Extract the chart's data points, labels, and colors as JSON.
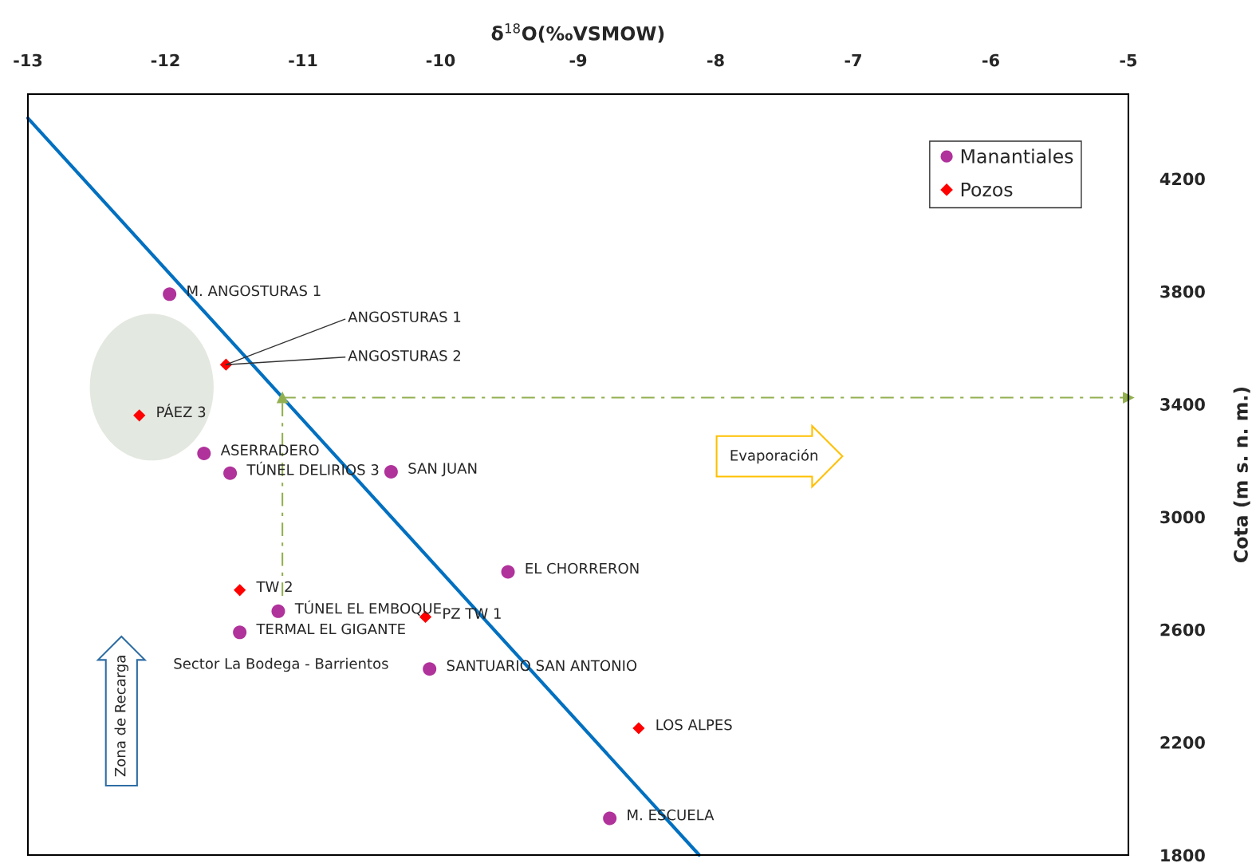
{
  "chart_data": {
    "type": "scatter",
    "xlabel": "δ$^{18}$O(‰VSMOW)",
    "ylabel": "Cota (m s. n. m.)",
    "xlim": [
      -13,
      -5
    ],
    "xticks": [
      -13,
      -12,
      -11,
      -10,
      -9,
      -8,
      -7,
      -6,
      -5
    ],
    "ylim": [
      1800,
      4500
    ],
    "yticks": [
      1800,
      2200,
      2600,
      3000,
      3400,
      3800,
      4200
    ],
    "grid": false,
    "legend": "top right",
    "series": [
      {
        "name": "Manantiales",
        "marker": "circle",
        "color": "#b0329b",
        "x": [
          -11.97,
          -11.72,
          -11.53,
          -10.36,
          -9.51,
          -11.18,
          -11.46,
          -10.08,
          -8.77
        ],
        "values": [
          3790,
          3225,
          3155,
          3160,
          2805,
          2665,
          2590,
          2460,
          1930
        ]
      },
      {
        "name": "Pozos",
        "marker": "diamond",
        "color": "#ff0000",
        "x": [
          -11.56,
          -12.19,
          -11.46,
          -10.11,
          -8.56
        ],
        "values": [
          3540,
          3360,
          2740,
          2645,
          2250
        ]
      },
      {
        "type": "line",
        "color": "#0070c0",
        "line_style": "solid",
        "x": [
          -13,
          -8.12
        ],
        "values": [
          4415,
          1800
        ]
      },
      {
        "type": "line",
        "color": "#92b050",
        "line_style": "dashed",
        "x": [
          -11.15,
          -11.15
        ],
        "values": [
          2720,
          3423
        ]
      },
      {
        "type": "line",
        "color": "#92b050",
        "line_style": "dashed",
        "x": [
          -11.15,
          -5
        ],
        "values": [
          3423,
          3423
        ]
      }
    ],
    "annotations": [
      {
        "text": "M. ANGOSTURAS 1",
        "x": -11.97,
        "y": 3790
      },
      {
        "text": "ANGOSTURAS 1",
        "x": -11.56,
        "y": 3540
      },
      {
        "text": "ANGOSTURAS 2",
        "x": -11.56,
        "y": 3540
      },
      {
        "text": "PÁEZ 3",
        "x": -12.19,
        "y": 3360
      },
      {
        "text": "ASERRADERO",
        "x": -11.72,
        "y": 3225
      },
      {
        "text": "TÚNEL DELIRIOS 3",
        "x": -11.53,
        "y": 3155
      },
      {
        "text": "SAN JUAN",
        "x": -10.36,
        "y": 3160
      },
      {
        "text": "EL CHORRERON",
        "x": -9.51,
        "y": 2805
      },
      {
        "text": "TW 2",
        "x": -11.46,
        "y": 2740
      },
      {
        "text": "TÚNEL EL EMBOQUE",
        "x": -11.18,
        "y": 2665
      },
      {
        "text": "PZ TW 1",
        "x": -10.11,
        "y": 2645
      },
      {
        "text": "TERMAL EL GIGANTE",
        "x": -11.46,
        "y": 2590
      },
      {
        "text": "SANTUARIO SAN ANTONIO",
        "x": -10.08,
        "y": 2460
      },
      {
        "text": "LOS ALPES",
        "x": -8.56,
        "y": 2250
      },
      {
        "text": "M. ESCUELA",
        "x": -8.77,
        "y": 1930
      },
      "Sector La Bodega - Barrientos",
      "Evaporación",
      "Zona de Recarga"
    ]
  }
}
